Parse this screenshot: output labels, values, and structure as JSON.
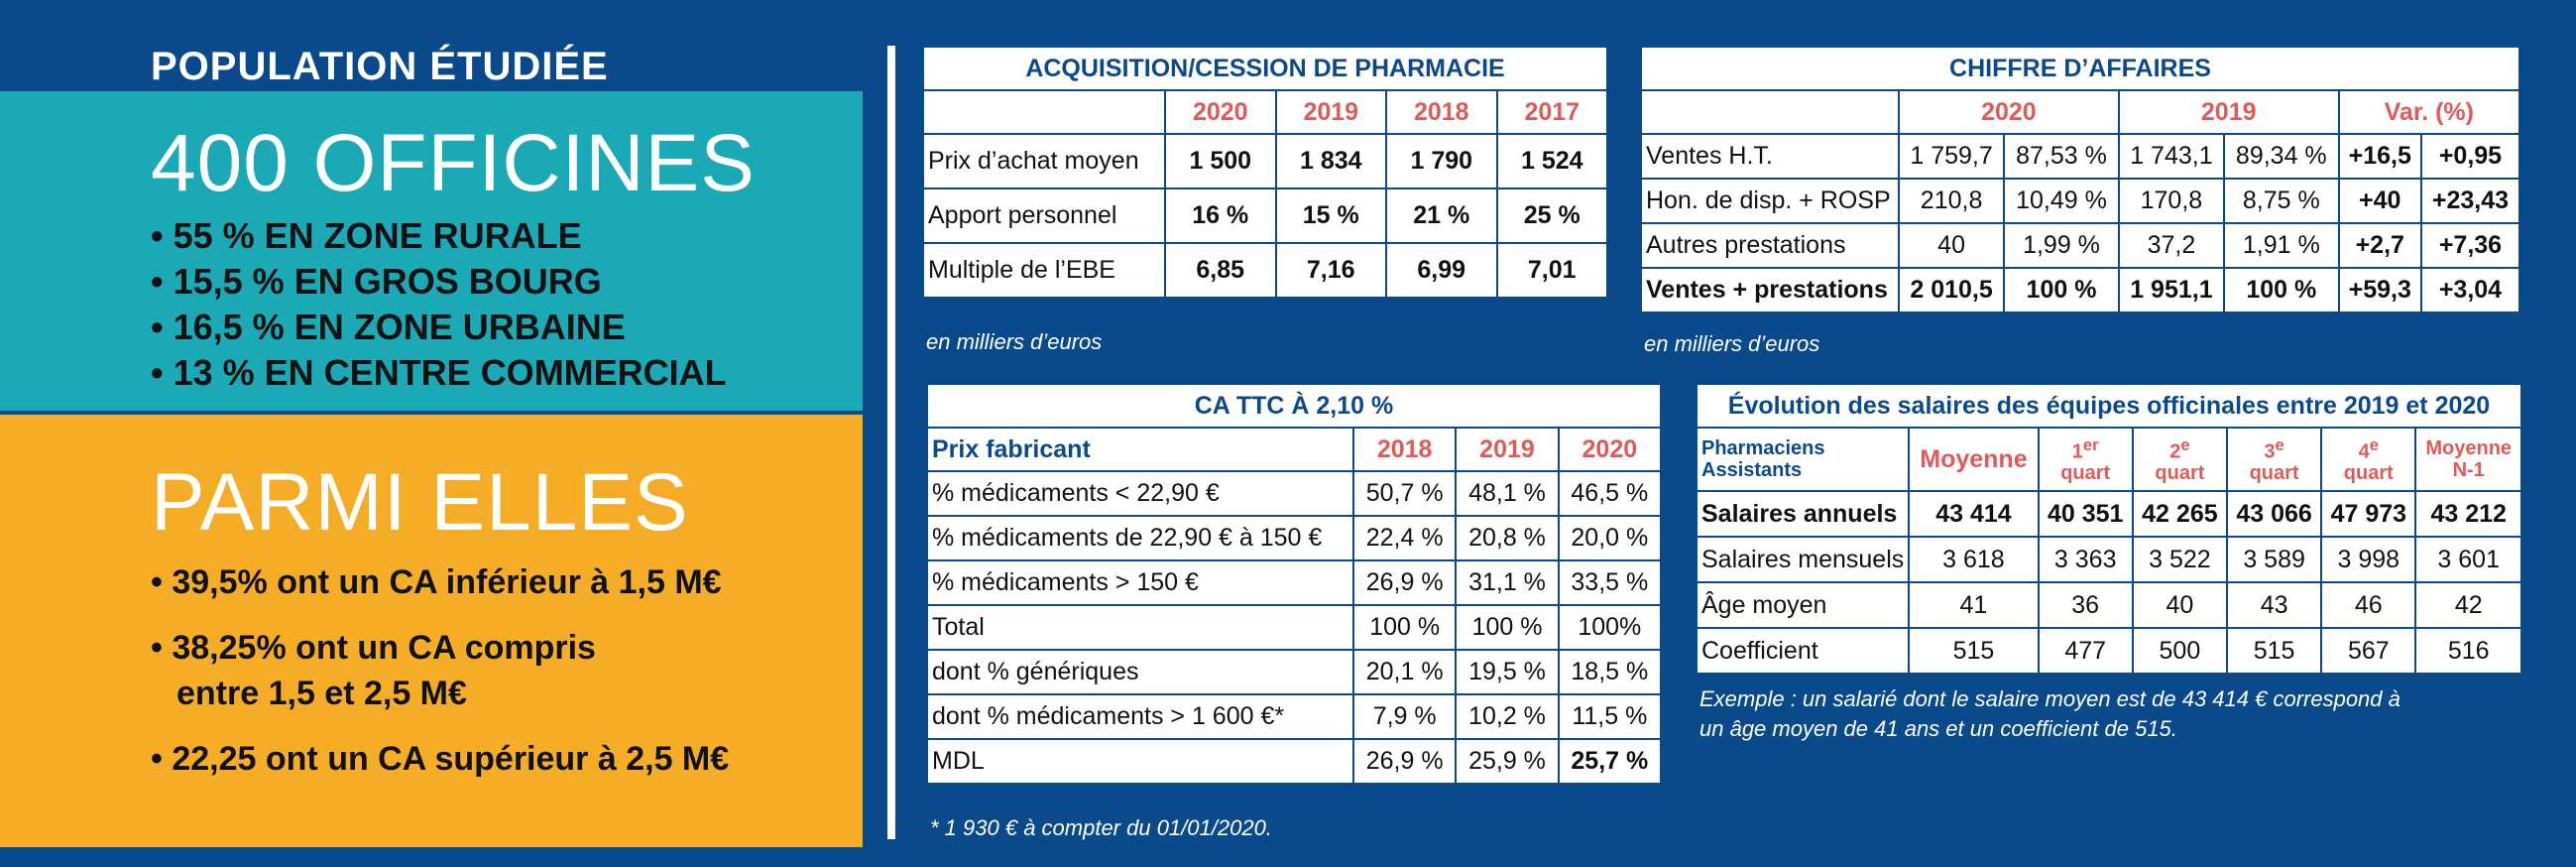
{
  "population": {
    "title": "POPULATION ÉTUDIÉE",
    "headline": "400 OFFICINES",
    "items": [
      "55 % EN ZONE RURALE",
      "15,5 % EN GROS BOURG",
      "16,5 % EN ZONE URBAINE",
      "13 % EN CENTRE COMMERCIAL"
    ],
    "parmi": "PARMI ELLES",
    "parmi_items": [
      "39,5% ont un CA inférieur à 1,5 M€",
      "38,25% ont un CA compris",
      "entre 1,5 et 2,5 M€",
      "22,25 ont un CA supérieur à 2,5 M€"
    ]
  },
  "acquisition": {
    "title": "ACQUISITION/CESSION DE PHARMACIE",
    "years": [
      "2020",
      "2019",
      "2018",
      "2017"
    ],
    "rows": [
      {
        "label": "Prix d’achat moyen",
        "values": [
          "1 500",
          "1 834",
          "1 790",
          "1 524"
        ]
      },
      {
        "label": "Apport personnel",
        "values": [
          "16 %",
          "15 %",
          "21 %",
          "25 %"
        ]
      },
      {
        "label": "Multiple de l’EBE",
        "values": [
          "6,85",
          "7,16",
          "6,99",
          "7,01"
        ]
      }
    ],
    "note": "en milliers d’euros"
  },
  "ca": {
    "title": "CHIFFRE D’AFFAIRES",
    "headers": [
      "2020",
      "2019",
      "Var. (%)"
    ],
    "rows": [
      {
        "label": "Ventes H.T.",
        "values": [
          "1 759,7",
          "87,53 %",
          "1 743,1",
          "89,34 %",
          "+16,5",
          "+0,95"
        ]
      },
      {
        "label": "Hon. de disp. + ROSP",
        "values": [
          "210,8",
          "10,49 %",
          "170,8",
          "8,75 %",
          "+40",
          "+23,43"
        ]
      },
      {
        "label": "Autres prestations",
        "values": [
          "40",
          "1,99 %",
          "37,2",
          "1,91 %",
          "+2,7",
          "+7,36"
        ]
      },
      {
        "label": "Ventes + prestations",
        "values": [
          "2 010,5",
          "100 %",
          "1 951,1",
          "100 %",
          "+59,3",
          "+3,04"
        ]
      }
    ],
    "note": "en milliers d’euros"
  },
  "ttc": {
    "title": "CA TTC À 2,10 %",
    "header_label": "Prix fabricant",
    "years": [
      "2018",
      "2019",
      "2020"
    ],
    "rows": [
      {
        "label": "% médicaments < 22,90 €",
        "values": [
          "50,7 %",
          "48,1 %",
          "46,5 %"
        ]
      },
      {
        "label": "% médicaments de 22,90 € à 150 €",
        "values": [
          "22,4 %",
          "20,8 %",
          "20,0 %"
        ]
      },
      {
        "label": "% médicaments > 150 €",
        "values": [
          "26,9 %",
          "31,1 %",
          "33,5 %"
        ]
      },
      {
        "label": "Total",
        "values": [
          "100 %",
          "100 %",
          "100%"
        ]
      },
      {
        "label": "dont % génériques",
        "values": [
          "20,1 %",
          "19,5 %",
          "18,5 %"
        ]
      },
      {
        "label": "dont % médicaments > 1 600 €*",
        "values": [
          "7,9 %",
          "10,2 %",
          "11,5 %"
        ]
      },
      {
        "label": "MDL",
        "values": [
          "26,9 %",
          "25,9 %",
          "25,7 %"
        ]
      }
    ],
    "note": "* 1 930 € à compter du 01/01/2020."
  },
  "salaires": {
    "title": "Évolution des salaires des équipes officinales entre 2019 et 2020",
    "header_label": "Pharmaciens Assistants",
    "headers": [
      {
        "main": "Moyenne",
        "sup": ""
      },
      {
        "main": "1",
        "sup": "er",
        "sub": "quart"
      },
      {
        "main": "2",
        "sup": "e",
        "sub": "quart"
      },
      {
        "main": "3",
        "sup": "e",
        "sub": "quart"
      },
      {
        "main": "4",
        "sup": "e",
        "sub": "quart"
      },
      {
        "main": "Moyenne",
        "sup": "",
        "sub": "N-1"
      }
    ],
    "rows": [
      {
        "label": "Salaires annuels",
        "values": [
          "43 414",
          "40 351",
          "42 265",
          "43 066",
          "47 973",
          "43 212"
        ]
      },
      {
        "label": "Salaires mensuels",
        "values": [
          "3 618",
          "3 363",
          "3 522",
          "3 589",
          "3 998",
          "3 601"
        ]
      },
      {
        "label": "Âge moyen",
        "values": [
          "41",
          "36",
          "40",
          "43",
          "46",
          "42"
        ]
      },
      {
        "label": "Coefficient",
        "values": [
          "515",
          "477",
          "500",
          "515",
          "567",
          "516"
        ]
      }
    ],
    "note1": "Exemple : un salarié dont le salaire moyen est de 43 414 € correspond à",
    "note2": "un âge moyen de 41 ans et un coefficient de 515."
  },
  "colors": {
    "background": "#0a4a8a",
    "teal": "#1ba9b5",
    "orange": "#f5ad27",
    "header_red": "#e05a5a"
  }
}
